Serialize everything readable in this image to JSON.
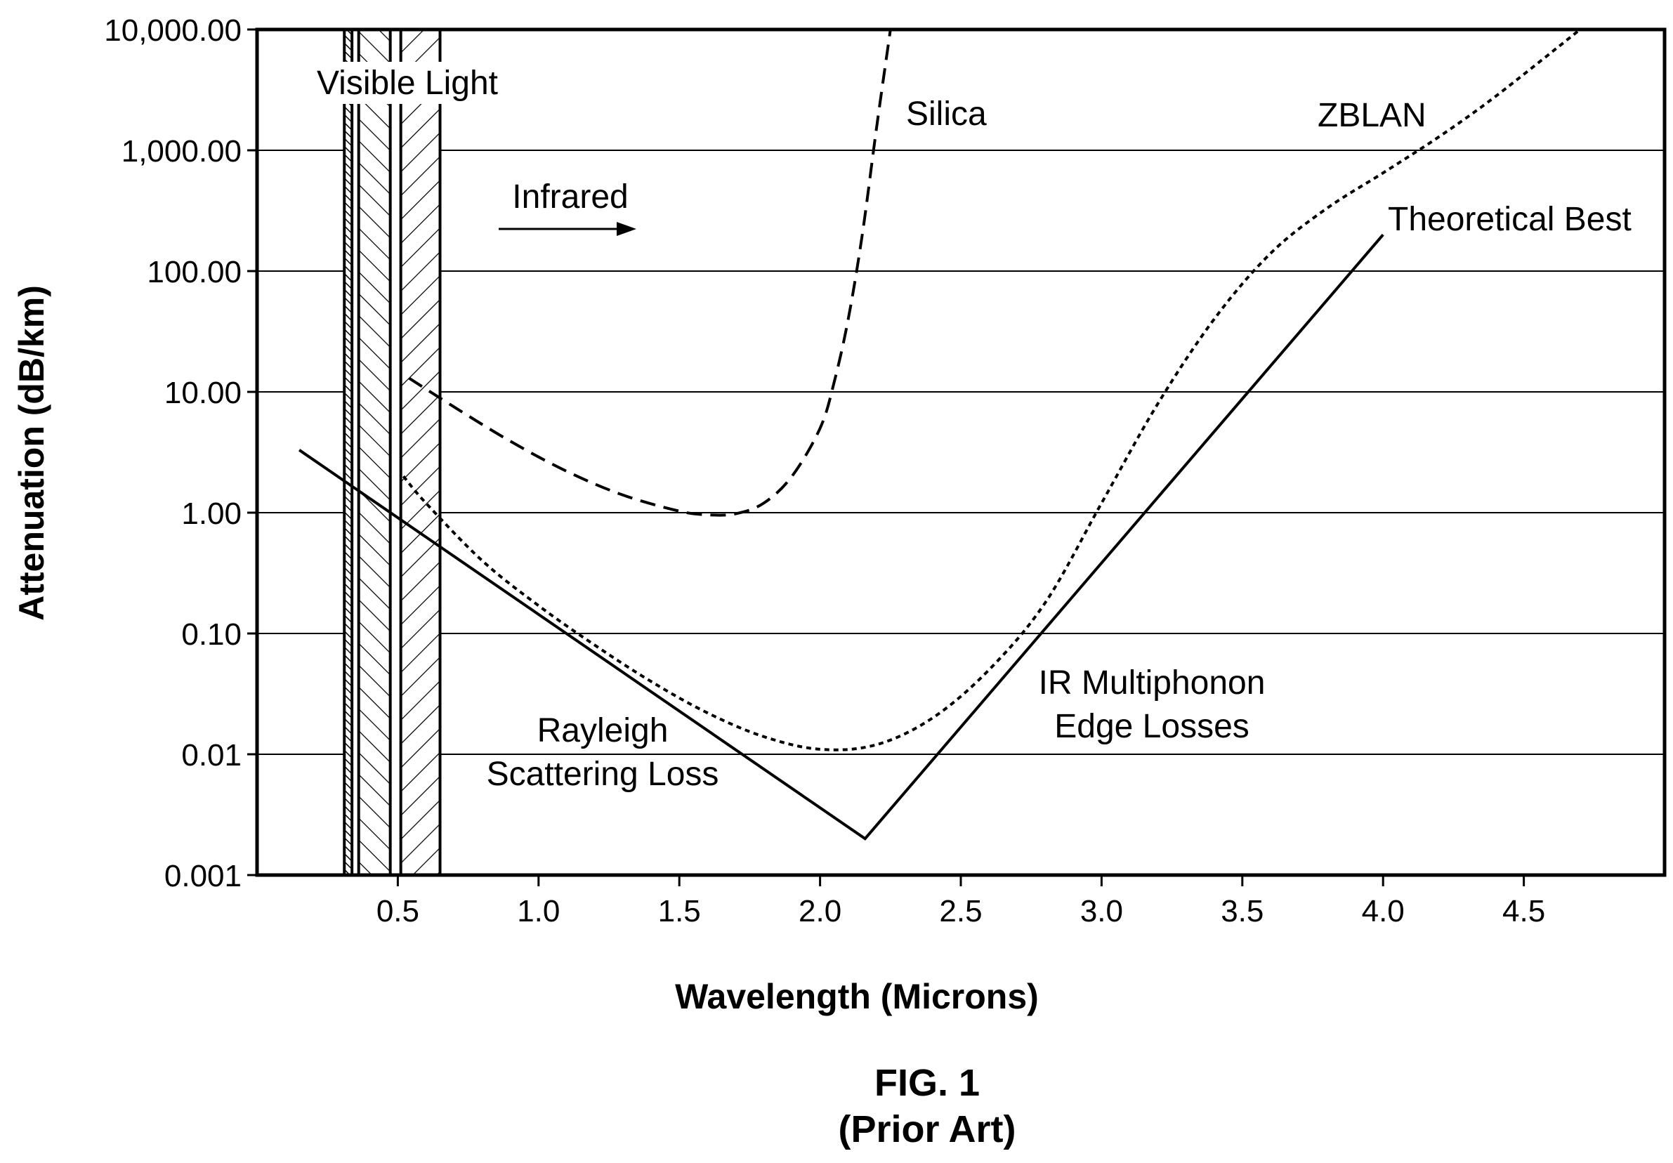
{
  "chart_data": {
    "type": "line",
    "xlabel": "Wavelength (Microns)",
    "ylabel": "Attenuation (dB/km)",
    "figure_label": "FIG. 1",
    "figure_sublabel": "(Prior Art)",
    "y_scale": "log",
    "ylim": [
      0.001,
      10000
    ],
    "xlim": [
      0.0,
      5.0
    ],
    "x_ticks": [
      "0.5",
      "1.0",
      "1.5",
      "2.0",
      "2.5",
      "3.0",
      "3.5",
      "4.0",
      "4.5"
    ],
    "y_ticks": [
      "10,000.00",
      "1,000.00",
      "100.00",
      "10.00",
      "1.00",
      "0.10",
      "0.01",
      "0.001"
    ],
    "grid": "horizontal",
    "band": {
      "label": "Visible Light",
      "x_range": [
        0.31,
        0.65
      ]
    },
    "arrow_label": "Infrared",
    "series": [
      {
        "name": "Silica",
        "style": "dashed",
        "x": [
          0.54,
          0.7,
          0.9,
          1.1,
          1.3,
          1.5,
          1.6,
          1.7,
          1.8,
          1.9,
          2.0,
          2.05,
          2.1,
          2.15,
          2.2,
          2.25
        ],
        "y": [
          13.0,
          7.5,
          3.9,
          2.2,
          1.4,
          1.03,
          0.96,
          0.98,
          1.2,
          2.0,
          5.0,
          12.0,
          40.0,
          200.0,
          1500.0,
          10000.0
        ]
      },
      {
        "name": "ZBLAN",
        "style": "dotted",
        "x": [
          0.52,
          0.6,
          0.8,
          1.0,
          1.2,
          1.4,
          1.6,
          1.8,
          2.0,
          2.2,
          2.4,
          2.6,
          2.8,
          3.0,
          3.2,
          3.4,
          3.6,
          3.8,
          4.0,
          4.2,
          4.4,
          4.7
        ],
        "y": [
          2.0,
          1.2,
          0.4,
          0.17,
          0.08,
          0.04,
          0.022,
          0.014,
          0.011,
          0.012,
          0.02,
          0.05,
          0.18,
          1.2,
          8.0,
          40.0,
          140.0,
          330.0,
          650.0,
          1300.0,
          2800.0,
          10000.0
        ]
      },
      {
        "name": "Theoretical Best",
        "style": "solid",
        "x": [
          0.15,
          2.16,
          4.0
        ],
        "y": [
          3.3,
          0.002,
          200.0
        ]
      }
    ],
    "annotations": [
      "Silica",
      "ZBLAN",
      "Theoretical Best",
      "Rayleigh",
      "Scattering Loss",
      "IR Multiphonon",
      "Edge Losses"
    ]
  }
}
